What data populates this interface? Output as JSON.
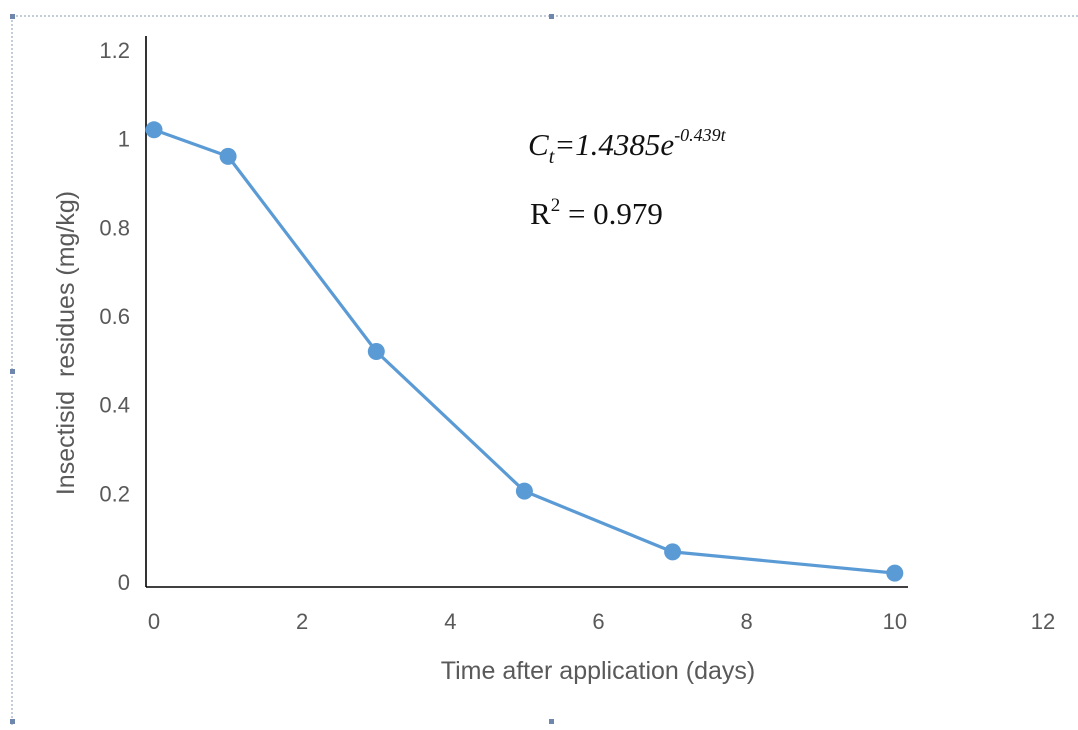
{
  "chart_data": {
    "type": "line",
    "title": "",
    "xlabel": "Time after application (days)",
    "ylabel": "Insectisid  residues (mg/kg)",
    "x": [
      0,
      1,
      3,
      5,
      7,
      10
    ],
    "series": [
      {
        "values": [
          1.02,
          0.96,
          0.52,
          0.205,
          0.068,
          0.02
        ],
        "color": "#5b9bd5"
      }
    ],
    "xlim": [
      0,
      12
    ],
    "ylim": [
      0,
      1.2
    ],
    "xticks": [
      "0",
      "2",
      "4",
      "6",
      "8",
      "10",
      "12"
    ],
    "yticks": [
      "0",
      "0.2",
      "0.4",
      "0.6",
      "0.8",
      "1",
      "1.2"
    ],
    "grid": false,
    "legend": "none",
    "annotations": {
      "equation_lhs": "C",
      "equation_sub": "t",
      "equation_rhs": "=1.4385e",
      "equation_exp": "-0.439t",
      "r2_prefix": "R",
      "r2_sup": "2",
      "r2_value": " = 0.979"
    }
  }
}
